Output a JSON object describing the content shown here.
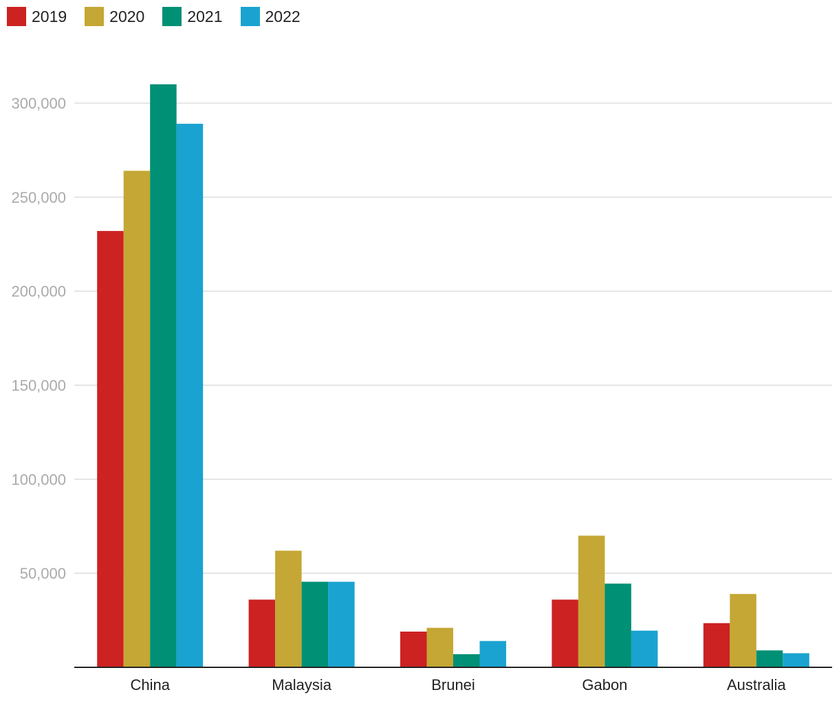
{
  "chart_data": {
    "type": "bar",
    "categories": [
      "China",
      "Malaysia",
      "Brunei",
      "Gabon",
      "Australia"
    ],
    "series": [
      {
        "name": "2019",
        "color": "#cc2222",
        "values": [
          232000,
          36000,
          19000,
          36000,
          23500
        ]
      },
      {
        "name": "2020",
        "color": "#c4a734",
        "values": [
          264000,
          62000,
          21000,
          70000,
          39000
        ]
      },
      {
        "name": "2021",
        "color": "#009075",
        "values": [
          310000,
          45500,
          7000,
          44500,
          9000
        ]
      },
      {
        "name": "2022",
        "color": "#1aa3d0",
        "values": [
          289000,
          45500,
          14000,
          19500,
          7500
        ]
      }
    ],
    "yticks": [
      "50,000",
      "100,000",
      "150,000",
      "200,000",
      "250,000",
      "300,000"
    ],
    "ytick_values": [
      50000,
      100000,
      150000,
      200000,
      250000,
      300000
    ],
    "ylim": [
      0,
      300000
    ],
    "grid": true,
    "legend_position": "top-left"
  }
}
